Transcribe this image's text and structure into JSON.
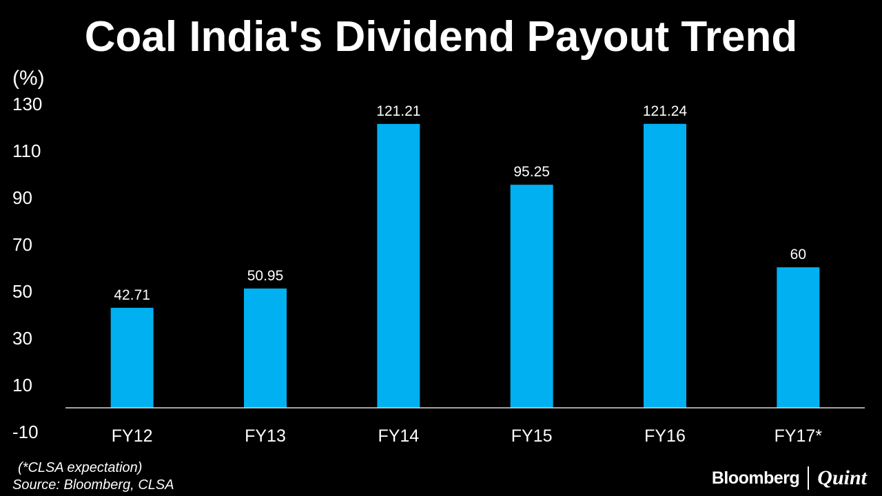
{
  "chart_data": {
    "type": "bar",
    "title": "Coal India's Dividend Payout Trend",
    "ylabel": "(%)",
    "categories": [
      "FY12",
      "FY13",
      "FY14",
      "FY15",
      "FY16",
      "FY17*"
    ],
    "values": [
      42.71,
      50.95,
      121.21,
      95.25,
      121.24,
      60
    ],
    "data_labels": [
      "42.71",
      "50.95",
      "121.21",
      "95.25",
      "121.24",
      "60"
    ],
    "yticks": [
      -10,
      10,
      30,
      50,
      70,
      90,
      110,
      130
    ],
    "ylim": [
      -10,
      130
    ],
    "grid": false,
    "bar_color": "#00B0F0",
    "axis_color": "#D9D9D9"
  },
  "footnote": "(*CLSA expectation)",
  "source": "Source: Bloomberg, CLSA",
  "logo": {
    "bloomberg": "Bloomberg",
    "quint": "Quint"
  }
}
